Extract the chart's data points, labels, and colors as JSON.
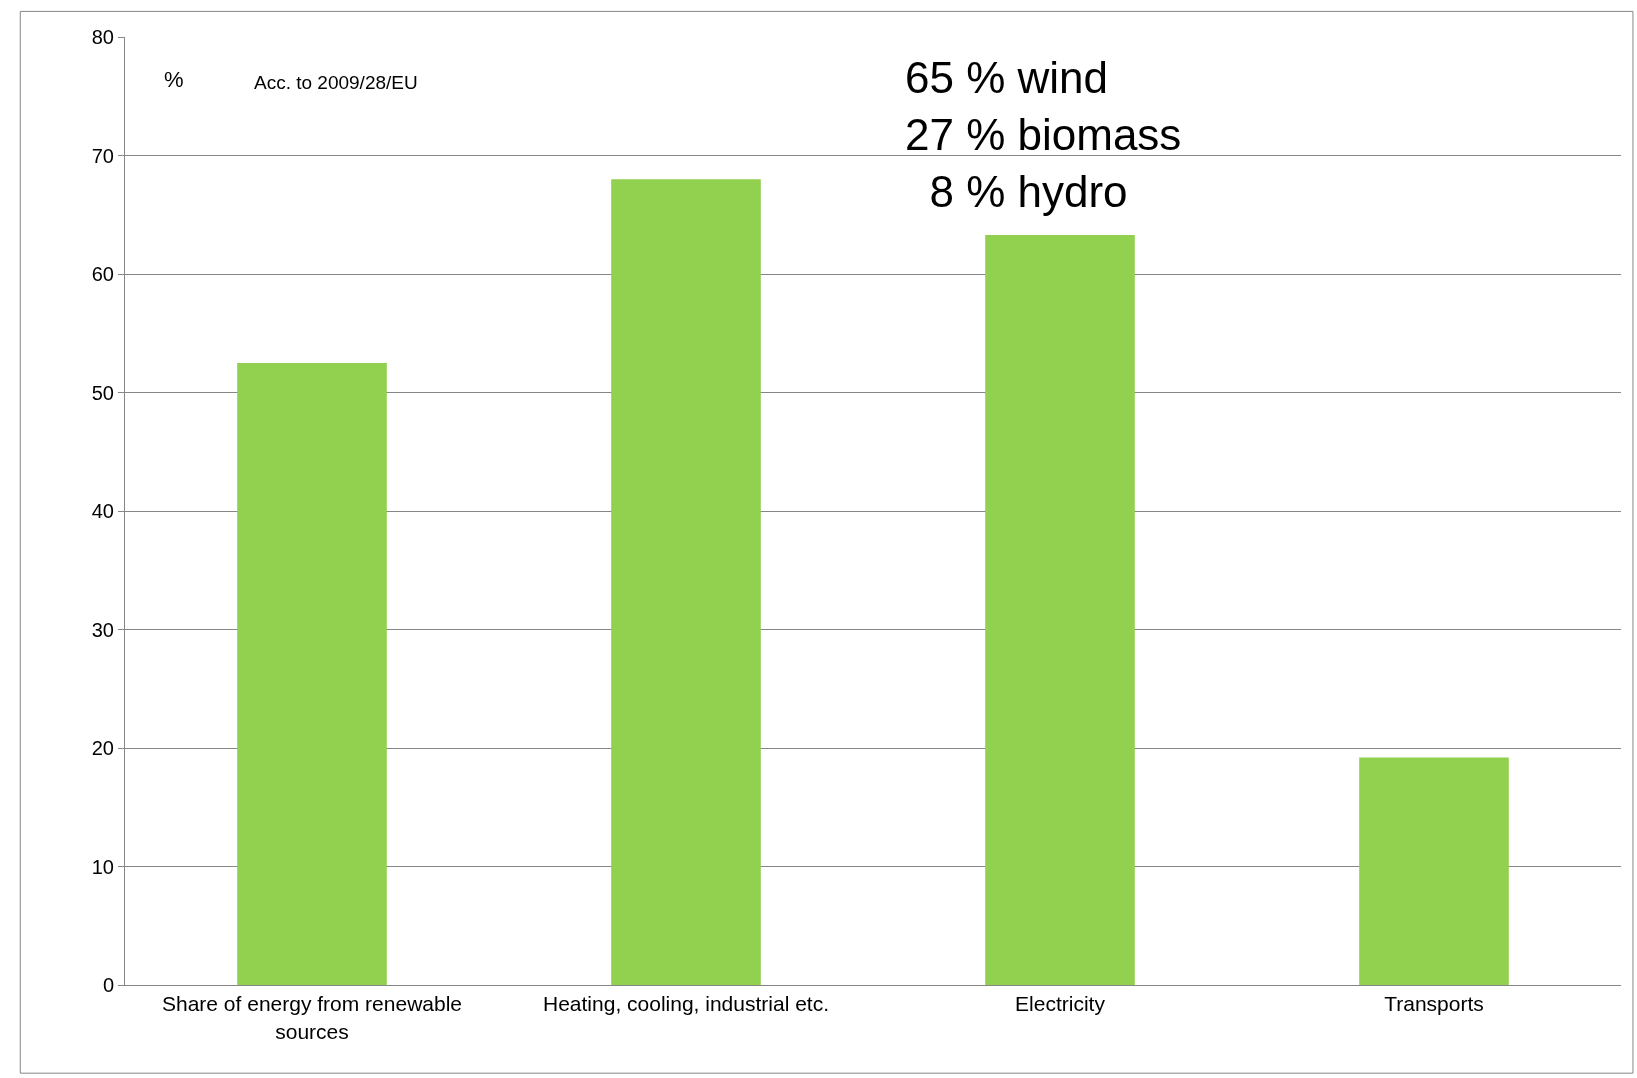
{
  "chart_data": {
    "type": "bar",
    "categories": [
      "Share of energy from renewable sources",
      "Heating, cooling, industrial etc.",
      "Electricity",
      "Transports"
    ],
    "values": [
      52.5,
      68,
      63.3,
      19.2
    ],
    "color": "#92d050",
    "ylim": [
      0,
      80
    ],
    "yticks": [
      0,
      10,
      20,
      30,
      40,
      50,
      60,
      70,
      80
    ],
    "grid": "y",
    "annotations": [
      "%",
      "Acc. to 2009/28/EU",
      "65 % wind\n27 % biomass\n  8 % hydro"
    ]
  }
}
